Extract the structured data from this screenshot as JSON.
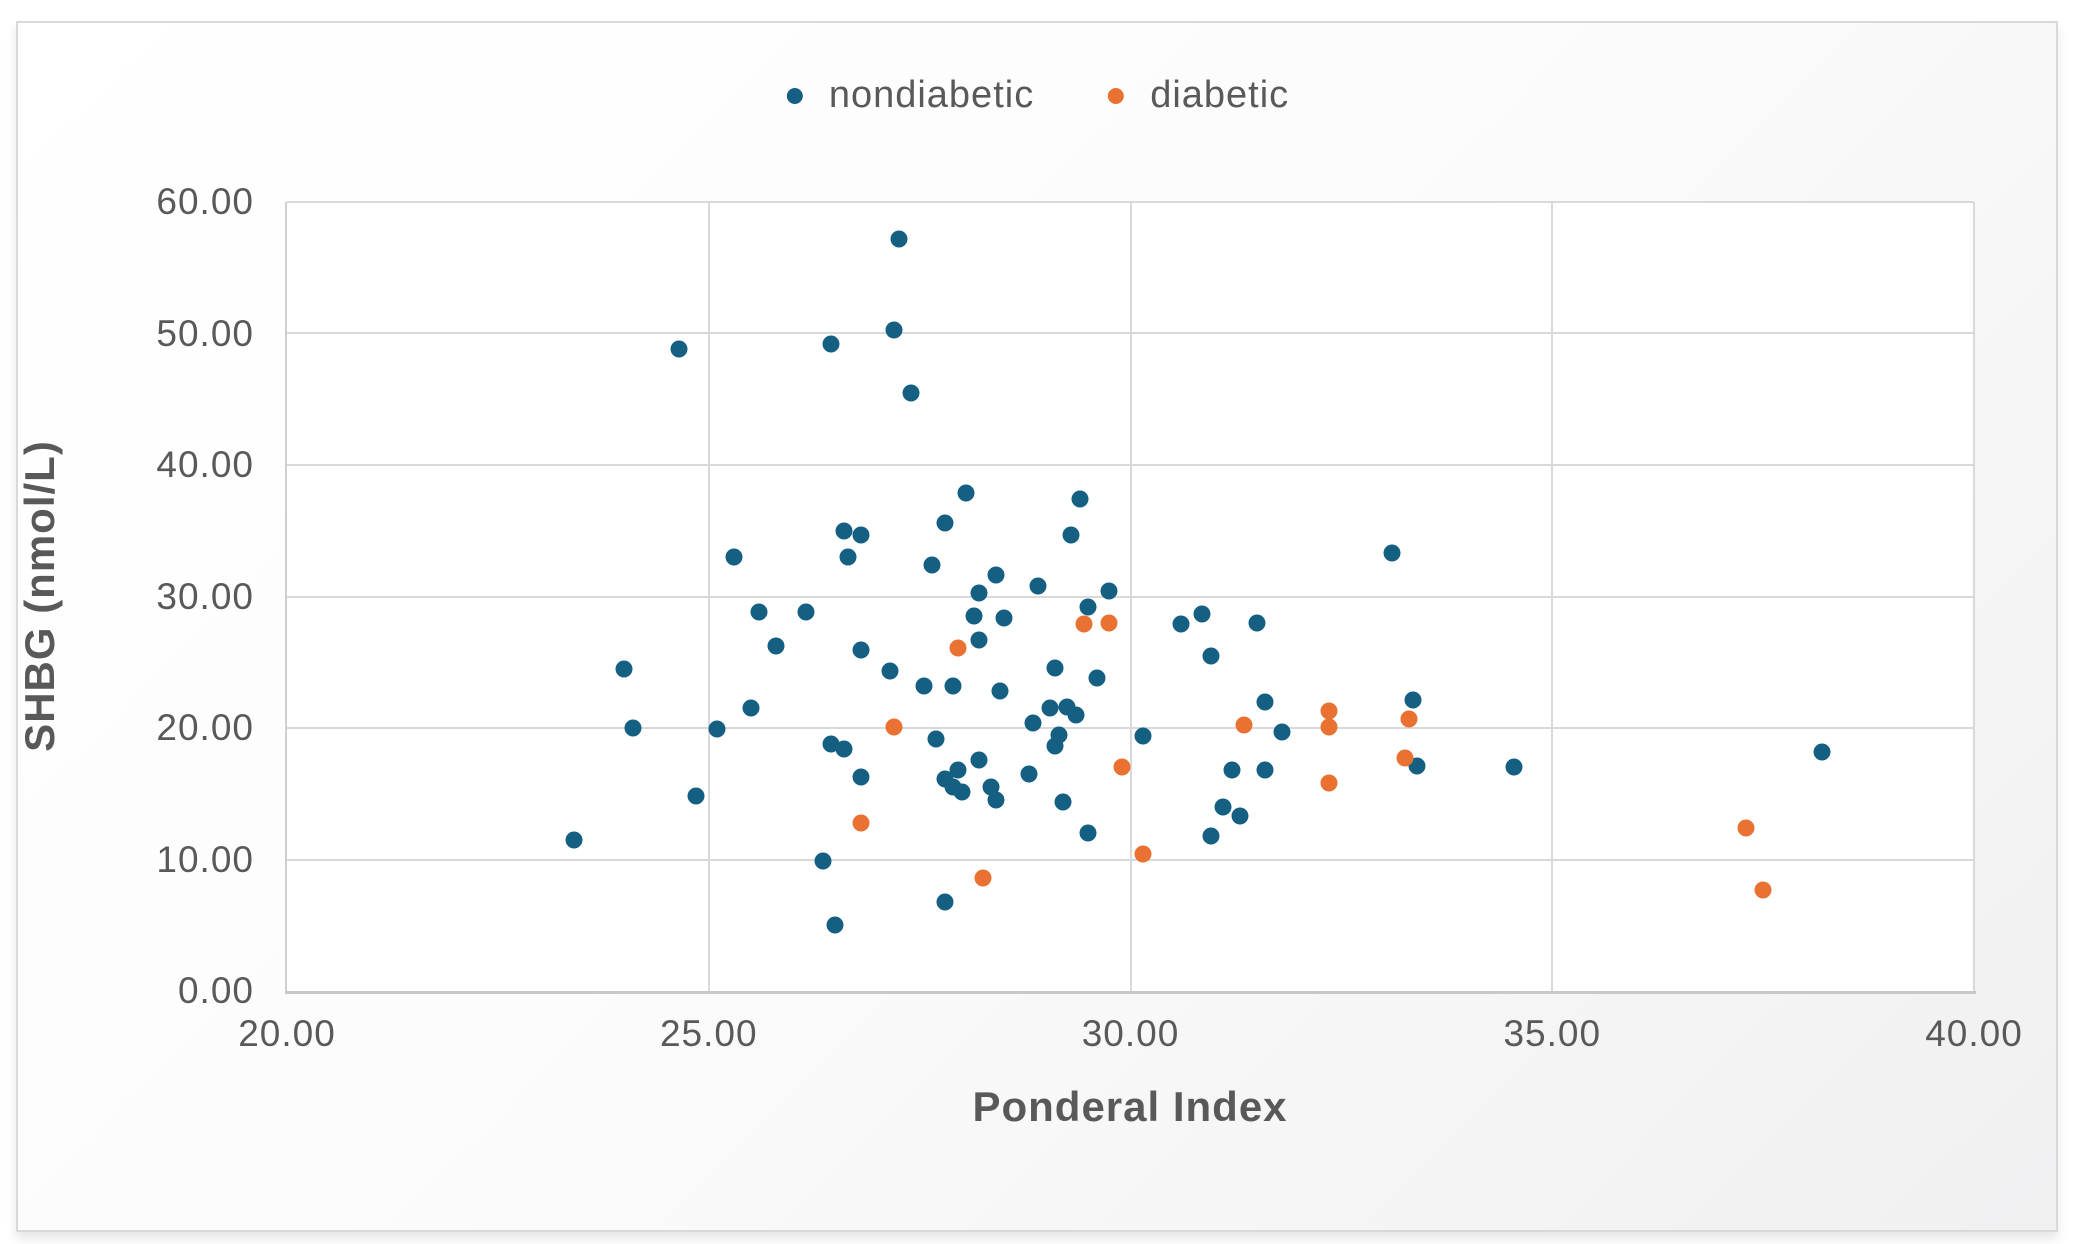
{
  "legend": {
    "items": [
      {
        "label": "nondiabetic",
        "color": "#156082"
      },
      {
        "label": "diabetic",
        "color": "#E97132"
      }
    ]
  },
  "colors": {
    "nondiabetic": "#156082",
    "diabetic": "#E97132",
    "gridline": "#D9D9D9",
    "axis_line": "#C8C8C8",
    "text": "#595959"
  },
  "chart_data": {
    "type": "scatter",
    "title": "",
    "xlabel": "Ponderal Index",
    "ylabel": "SHBG (nmol/L)",
    "xlim": [
      20,
      40
    ],
    "ylim": [
      0,
      60
    ],
    "x_ticks": [
      20,
      25,
      30,
      35,
      40
    ],
    "x_tick_labels": [
      "20.00",
      "25.00",
      "30.00",
      "35.00",
      "40.00"
    ],
    "y_ticks": [
      0,
      10,
      20,
      30,
      40,
      50,
      60
    ],
    "y_tick_labels": [
      "0.00",
      "10.00",
      "20.00",
      "30.00",
      "40.00",
      "50.00",
      "60.00"
    ],
    "grid": true,
    "legend_position": "top",
    "series": [
      {
        "name": "nondiabetic",
        "color": "#156082",
        "points": [
          [
            23.4,
            11.5
          ],
          [
            24.0,
            24.5
          ],
          [
            24.1,
            20.0
          ],
          [
            24.65,
            48.8
          ],
          [
            24.85,
            14.8
          ],
          [
            25.1,
            19.9
          ],
          [
            25.3,
            33.0
          ],
          [
            25.5,
            21.5
          ],
          [
            25.6,
            28.8
          ],
          [
            25.8,
            26.2
          ],
          [
            26.15,
            28.8
          ],
          [
            26.35,
            9.9
          ],
          [
            26.45,
            49.2
          ],
          [
            26.45,
            18.8
          ],
          [
            26.5,
            5.0
          ],
          [
            26.6,
            35.0
          ],
          [
            26.6,
            18.4
          ],
          [
            26.65,
            33.0
          ],
          [
            26.8,
            34.7
          ],
          [
            26.8,
            25.9
          ],
          [
            26.8,
            16.3
          ],
          [
            27.15,
            24.3
          ],
          [
            27.2,
            50.3
          ],
          [
            27.25,
            57.2
          ],
          [
            27.4,
            45.5
          ],
          [
            27.55,
            23.2
          ],
          [
            27.65,
            32.4
          ],
          [
            27.7,
            19.2
          ],
          [
            27.8,
            35.6
          ],
          [
            27.8,
            16.1
          ],
          [
            27.8,
            6.8
          ],
          [
            27.9,
            23.2
          ],
          [
            27.95,
            16.8
          ],
          [
            27.9,
            15.5
          ],
          [
            28.0,
            15.1
          ],
          [
            28.05,
            37.9
          ],
          [
            28.15,
            28.5
          ],
          [
            28.2,
            30.3
          ],
          [
            28.2,
            26.7
          ],
          [
            28.2,
            17.6
          ],
          [
            28.35,
            15.5
          ],
          [
            28.4,
            31.6
          ],
          [
            28.4,
            14.5
          ],
          [
            28.45,
            22.8
          ],
          [
            28.5,
            28.4
          ],
          [
            28.8,
            16.5
          ],
          [
            28.85,
            20.4
          ],
          [
            28.9,
            30.8
          ],
          [
            29.05,
            21.5
          ],
          [
            29.1,
            24.6
          ],
          [
            29.1,
            18.6
          ],
          [
            29.15,
            19.5
          ],
          [
            29.2,
            14.4
          ],
          [
            29.25,
            21.6
          ],
          [
            29.3,
            34.7
          ],
          [
            29.35,
            21.0
          ],
          [
            29.4,
            37.4
          ],
          [
            29.5,
            29.2
          ],
          [
            29.5,
            12.0
          ],
          [
            29.6,
            23.8
          ],
          [
            29.75,
            30.4
          ],
          [
            30.15,
            19.4
          ],
          [
            30.6,
            27.9
          ],
          [
            30.85,
            28.7
          ],
          [
            30.95,
            25.5
          ],
          [
            30.95,
            11.8
          ],
          [
            31.1,
            14.0
          ],
          [
            31.2,
            16.8
          ],
          [
            31.3,
            13.3
          ],
          [
            31.5,
            28.0
          ],
          [
            31.6,
            22.0
          ],
          [
            31.6,
            16.8
          ],
          [
            31.8,
            19.7
          ],
          [
            33.1,
            33.3
          ],
          [
            33.35,
            22.1
          ],
          [
            33.4,
            17.1
          ],
          [
            34.55,
            17.0
          ],
          [
            38.2,
            18.2
          ]
        ]
      },
      {
        "name": "diabetic",
        "color": "#E97132",
        "points": [
          [
            26.8,
            12.8
          ],
          [
            27.2,
            20.1
          ],
          [
            27.95,
            26.1
          ],
          [
            28.25,
            8.6
          ],
          [
            29.45,
            27.9
          ],
          [
            29.75,
            28.0
          ],
          [
            29.9,
            17.0
          ],
          [
            30.15,
            10.4
          ],
          [
            31.35,
            20.2
          ],
          [
            32.35,
            21.3
          ],
          [
            32.35,
            20.1
          ],
          [
            32.35,
            15.8
          ],
          [
            33.25,
            17.7
          ],
          [
            33.3,
            20.7
          ],
          [
            37.3,
            12.4
          ],
          [
            37.5,
            7.7
          ]
        ]
      }
    ]
  }
}
